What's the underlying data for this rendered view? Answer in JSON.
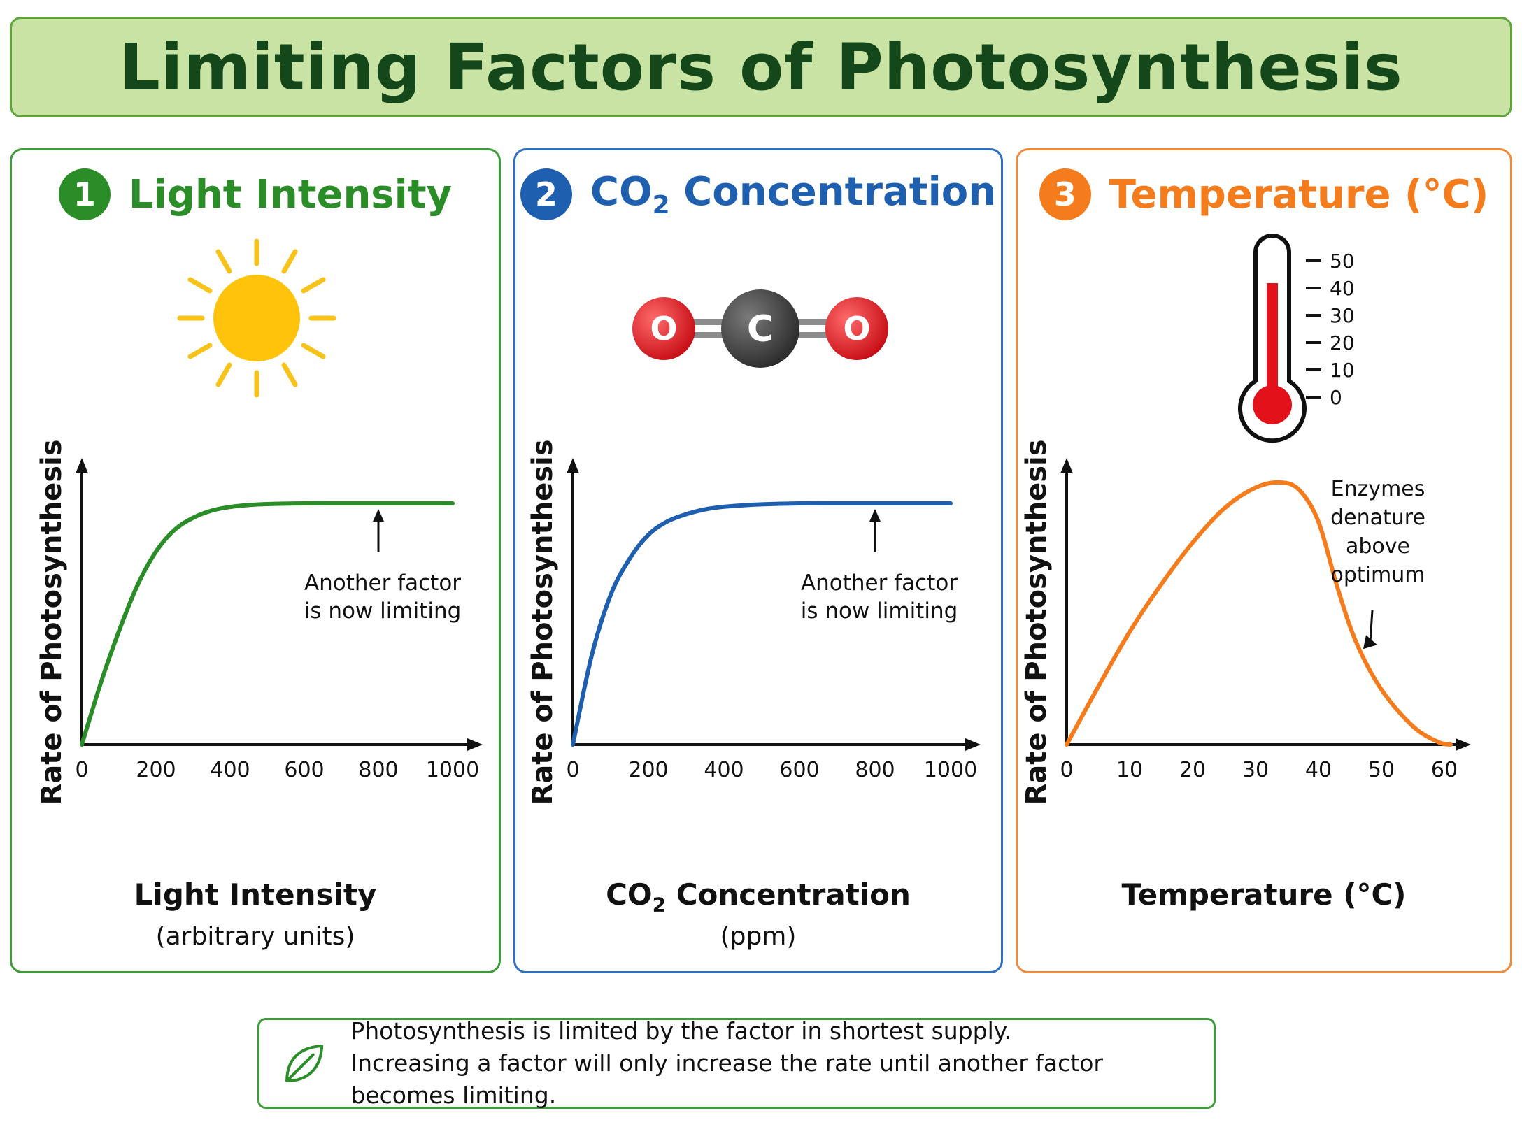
{
  "title": "Limiting Factors of Photosynthesis",
  "panels": [
    {
      "number": "1",
      "title": "Light Intensity",
      "icon": "sun-icon",
      "color": "#2a8d28"
    },
    {
      "number": "2",
      "title_main": "CO",
      "title_sub": "2",
      "title_rest": " Concentration",
      "icon": "co2-molecule-icon",
      "color": "#1f5fb0",
      "molecule": {
        "o_left": "O",
        "c": "C",
        "o_right": "O"
      }
    },
    {
      "number": "3",
      "title": "Temperature (°C)",
      "icon": "thermometer-icon",
      "color": "#f47c1c",
      "thermometer_scale": [
        "50",
        "40",
        "30",
        "20",
        "10",
        "0"
      ]
    }
  ],
  "summary": {
    "icon": "leaf-icon",
    "line1": "Photosynthesis is limited by the factor in shortest supply.",
    "line2": "Increasing a factor will only increase the rate until another factor becomes limiting."
  },
  "chart_data": [
    {
      "type": "line",
      "ylabel": "Rate of Photosynthesis",
      "xlabel": "Light Intensity",
      "xunit": "(arbitrary units)",
      "xlim": [
        0,
        1000
      ],
      "xticks": [
        "0",
        "200",
        "400",
        "600",
        "800",
        "1000"
      ],
      "x": [
        0,
        50,
        100,
        150,
        200,
        250,
        300,
        350,
        400,
        450,
        500,
        600,
        700,
        800,
        900,
        1000
      ],
      "y": [
        0,
        0.25,
        0.47,
        0.66,
        0.8,
        0.89,
        0.94,
        0.97,
        0.985,
        0.993,
        0.997,
        1.0,
        1.0,
        1.0,
        1.0,
        1.0
      ],
      "annotation": {
        "lines": [
          "Another factor",
          "is now limiting"
        ],
        "x": 800
      },
      "color": "#2a8d28"
    },
    {
      "type": "line",
      "ylabel": "Rate of Photosynthesis",
      "xlabel_main": "CO",
      "xlabel_sub": "2",
      "xlabel_rest": " Concentration",
      "xunit": "(ppm)",
      "xlim": [
        0,
        1000
      ],
      "xticks": [
        "0",
        "200",
        "400",
        "600",
        "800",
        "1000"
      ],
      "x": [
        0,
        50,
        100,
        150,
        200,
        250,
        300,
        350,
        400,
        450,
        500,
        600,
        700,
        800,
        900,
        1000
      ],
      "y": [
        0,
        0.37,
        0.62,
        0.77,
        0.87,
        0.925,
        0.955,
        0.975,
        0.986,
        0.992,
        0.996,
        1.0,
        1.0,
        1.0,
        1.0,
        1.0
      ],
      "annotation": {
        "lines": [
          "Another factor",
          "is now limiting"
        ],
        "x": 800
      },
      "color": "#1f5fb0"
    },
    {
      "type": "line",
      "ylabel": "Rate of Photosynthesis",
      "xlabel": "Temperature (°C)",
      "xlim": [
        0,
        60
      ],
      "xticks": [
        "0",
        "10",
        "20",
        "30",
        "40",
        "50",
        "60"
      ],
      "x": [
        0,
        5,
        10,
        15,
        20,
        25,
        30,
        34,
        37,
        40,
        43,
        46,
        50,
        55,
        59,
        61
      ],
      "y": [
        0,
        0.22,
        0.43,
        0.61,
        0.77,
        0.9,
        0.98,
        1.0,
        0.97,
        0.85,
        0.6,
        0.39,
        0.21,
        0.07,
        0.01,
        0
      ],
      "annotation": {
        "lines": [
          "Enzymes",
          "denature",
          "above",
          "optimum"
        ],
        "x": 48
      },
      "color": "#f47c1c"
    }
  ]
}
